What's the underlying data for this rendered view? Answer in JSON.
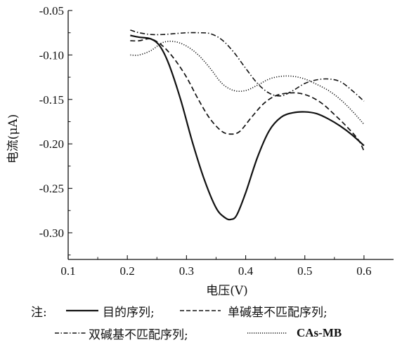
{
  "chart_data": {
    "type": "line",
    "xlabel": "电压(V)",
    "ylabel": "电流(μA)",
    "xlim": [
      0.1,
      0.65
    ],
    "ylim": [
      -0.33,
      -0.05
    ],
    "x_ticks": [
      "0.1",
      "0.2",
      "0.3",
      "0.4",
      "0.5",
      "0.6"
    ],
    "y_ticks": [
      "-0.05",
      "-0.10",
      "-0.15",
      "-0.20",
      "-0.25",
      "-0.30"
    ],
    "legend_prefix": "注:",
    "series": [
      {
        "name": "目的序列;",
        "style": "solid",
        "color": "#111111",
        "x": [
          0.205,
          0.22,
          0.24,
          0.255,
          0.27,
          0.29,
          0.31,
          0.33,
          0.35,
          0.365,
          0.375,
          0.385,
          0.4,
          0.42,
          0.44,
          0.46,
          0.48,
          0.5,
          0.52,
          0.54,
          0.56,
          0.58,
          0.6
        ],
        "y": [
          -0.078,
          -0.08,
          -0.082,
          -0.09,
          -0.11,
          -0.15,
          -0.198,
          -0.24,
          -0.272,
          -0.283,
          -0.285,
          -0.28,
          -0.255,
          -0.215,
          -0.185,
          -0.17,
          -0.165,
          -0.164,
          -0.166,
          -0.172,
          -0.18,
          -0.19,
          -0.202
        ]
      },
      {
        "name": "单碱基不匹配序列;",
        "style": "dashed",
        "color": "#111111",
        "x": [
          0.205,
          0.22,
          0.24,
          0.26,
          0.28,
          0.3,
          0.32,
          0.34,
          0.36,
          0.375,
          0.39,
          0.41,
          0.43,
          0.45,
          0.47,
          0.49,
          0.51,
          0.53,
          0.55,
          0.57,
          0.59,
          0.6
        ],
        "y": [
          -0.084,
          -0.084,
          -0.082,
          -0.09,
          -0.105,
          -0.125,
          -0.15,
          -0.172,
          -0.186,
          -0.189,
          -0.186,
          -0.17,
          -0.155,
          -0.146,
          -0.143,
          -0.143,
          -0.147,
          -0.155,
          -0.167,
          -0.18,
          -0.195,
          -0.208
        ]
      },
      {
        "name": "双碱基不匹配序列;",
        "style": "dashdot",
        "color": "#111111",
        "x": [
          0.205,
          0.22,
          0.24,
          0.26,
          0.28,
          0.3,
          0.32,
          0.34,
          0.36,
          0.38,
          0.4,
          0.42,
          0.44,
          0.46,
          0.48,
          0.5,
          0.52,
          0.54,
          0.56,
          0.58,
          0.6
        ],
        "y": [
          -0.072,
          -0.075,
          -0.077,
          -0.077,
          -0.076,
          -0.075,
          -0.075,
          -0.076,
          -0.083,
          -0.097,
          -0.115,
          -0.132,
          -0.143,
          -0.146,
          -0.14,
          -0.132,
          -0.128,
          -0.127,
          -0.13,
          -0.14,
          -0.152
        ]
      },
      {
        "name": "CAs-MB",
        "style": "dotted",
        "color": "#111111",
        "x": [
          0.205,
          0.22,
          0.24,
          0.26,
          0.28,
          0.3,
          0.32,
          0.34,
          0.36,
          0.38,
          0.4,
          0.42,
          0.44,
          0.46,
          0.48,
          0.5,
          0.52,
          0.54,
          0.56,
          0.58,
          0.6
        ],
        "y": [
          -0.1,
          -0.1,
          -0.095,
          -0.086,
          -0.085,
          -0.09,
          -0.1,
          -0.115,
          -0.132,
          -0.14,
          -0.14,
          -0.134,
          -0.127,
          -0.124,
          -0.124,
          -0.127,
          -0.133,
          -0.14,
          -0.15,
          -0.163,
          -0.178
        ]
      }
    ]
  }
}
